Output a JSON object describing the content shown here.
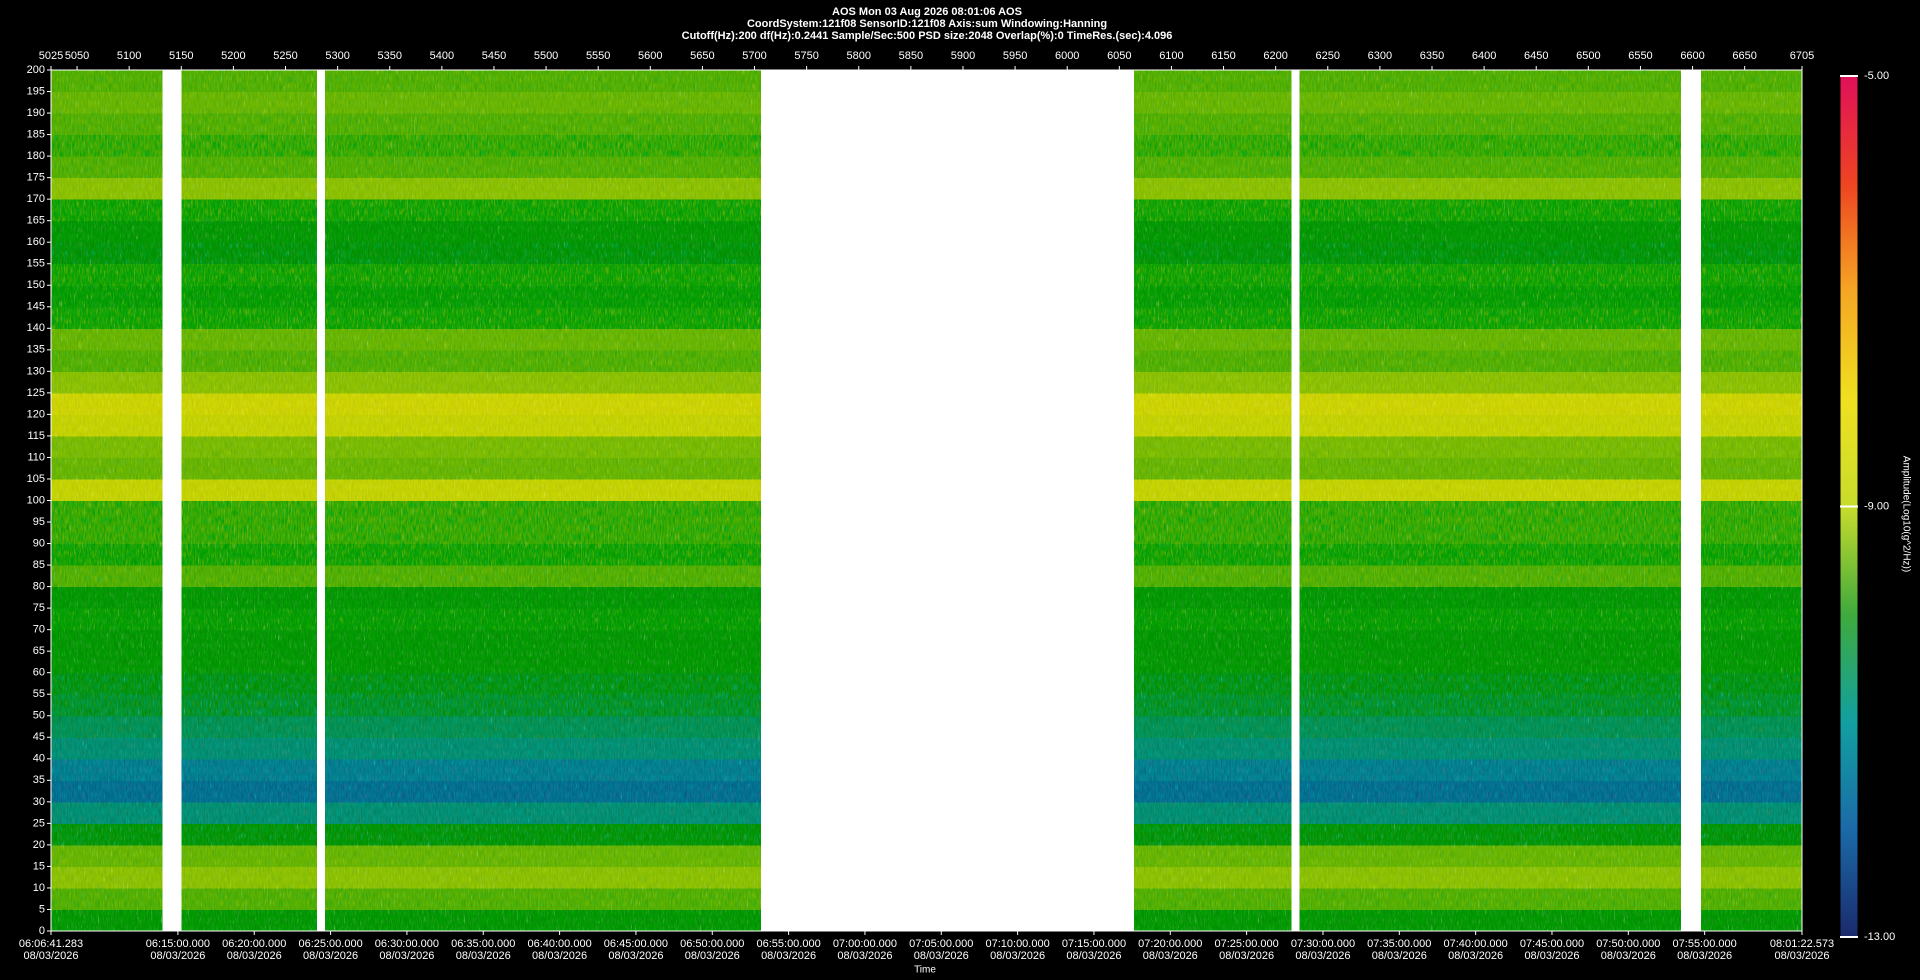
{
  "chart_data": {
    "type": "heatmap",
    "title": "AOS  Mon 03 Aug 2026 08:01:06  AOS",
    "subtitle": [
      "CoordSystem:121f08   SensorID:121f08   Axis:sum   Windowing:Hanning",
      "Cutoff(Hz):200     df(Hz):0.2441     Sample/Sec:500     PSD size:2048     Overlap(%):0     TimeRes.(sec):4.096"
    ],
    "x_label": "Time",
    "colorbar_label": "Amplitude(Log10(g^2/Hz))",
    "xlim": [
      5025,
      6705
    ],
    "xticks": [
      5025,
      5050,
      5100,
      5150,
      5200,
      5250,
      5300,
      5350,
      5400,
      5450,
      5500,
      5550,
      5600,
      5650,
      5700,
      5750,
      5800,
      5850,
      5900,
      5950,
      6000,
      6050,
      6100,
      6150,
      6200,
      6250,
      6300,
      6350,
      6400,
      6450,
      6500,
      6550,
      6600,
      6650,
      6705
    ],
    "x2ticks": [
      {
        "value": 5025,
        "label": "06:06:41.283\n08/03/2026"
      },
      {
        "value": 5146.76,
        "label": "06:15:00.000\n08/03/2026"
      },
      {
        "value": 5220.0,
        "label": "06:20:00.000\n08/03/2026"
      },
      {
        "value": 5293.24,
        "label": "06:25:00.000\n08/03/2026"
      },
      {
        "value": 5366.48,
        "label": "06:30:00.000\n08/03/2026"
      },
      {
        "value": 5439.73,
        "label": "06:35:00.000\n08/03/2026"
      },
      {
        "value": 5512.97,
        "label": "06:40:00.000\n08/03/2026"
      },
      {
        "value": 5586.21,
        "label": "06:45:00.000\n08/03/2026"
      },
      {
        "value": 5659.45,
        "label": "06:50:00.000\n08/03/2026"
      },
      {
        "value": 5732.7,
        "label": "06:55:00.000\n08/03/2026"
      },
      {
        "value": 5805.94,
        "label": "07:00:00.000\n08/03/2026"
      },
      {
        "value": 5879.18,
        "label": "07:05:00.000\n08/03/2026"
      },
      {
        "value": 5952.42,
        "label": "07:10:00.000\n08/03/2026"
      },
      {
        "value": 6025.66,
        "label": "07:15:00.000\n08/03/2026"
      },
      {
        "value": 6098.91,
        "label": "07:20:00.000\n08/03/2026"
      },
      {
        "value": 6172.15,
        "label": "07:25:00.000\n08/03/2026"
      },
      {
        "value": 6245.39,
        "label": "07:30:00.000\n08/03/2026"
      },
      {
        "value": 6318.63,
        "label": "07:35:00.000\n08/03/2026"
      },
      {
        "value": 6391.88,
        "label": "07:40:00.000\n08/03/2026"
      },
      {
        "value": 6465.12,
        "label": "07:45:00.000\n08/03/2026"
      },
      {
        "value": 6538.36,
        "label": "07:50:00.000\n08/03/2026"
      },
      {
        "value": 6611.6,
        "label": "07:55:00.000\n08/03/2026"
      },
      {
        "value": 6705,
        "label": "08:01:22.573\n08/03/2026"
      }
    ],
    "ylim": [
      0,
      200
    ],
    "yticks": [
      0,
      5,
      10,
      15,
      20,
      25,
      30,
      35,
      40,
      45,
      50,
      55,
      60,
      65,
      70,
      75,
      80,
      85,
      90,
      95,
      100,
      105,
      110,
      115,
      120,
      125,
      130,
      135,
      140,
      145,
      150,
      155,
      160,
      165,
      170,
      175,
      180,
      185,
      190,
      195,
      200
    ],
    "y_bins": [
      0,
      5,
      10,
      15,
      20,
      25,
      30,
      35,
      40,
      45,
      50,
      55,
      60,
      65,
      70,
      75,
      80,
      85,
      90,
      95,
      100,
      105,
      110,
      115,
      120,
      125,
      130,
      135,
      140,
      145,
      150,
      155,
      160,
      165,
      170,
      175,
      180,
      185,
      190,
      195,
      200
    ],
    "values": [
      -10.0,
      -9.6,
      -9.3,
      -9.5,
      -10.2,
      -10.8,
      -11.4,
      -11.2,
      -10.8,
      -10.6,
      -10.4,
      -10.3,
      -10.0,
      -10.0,
      -9.9,
      -10.0,
      -9.6,
      -9.8,
      -9.7,
      -9.7,
      -8.8,
      -9.5,
      -9.4,
      -8.8,
      -8.6,
      -9.3,
      -9.6,
      -9.5,
      -9.8,
      -9.9,
      -9.8,
      -10.2,
      -10.0,
      -9.8,
      -9.3,
      -9.6,
      -9.7,
      -9.6,
      -9.5,
      -9.6
    ],
    "segments": [
      [
        5025,
        5132
      ],
      [
        5150,
        5280
      ],
      [
        5288,
        5706
      ],
      [
        6064,
        6215
      ],
      [
        6223,
        6589
      ],
      [
        6608,
        6705
      ]
    ],
    "clim": [
      -13,
      -5
    ],
    "colormap": [
      "#1a2a6c",
      "#1b6aa8",
      "#12a0a0",
      "#3faa3c",
      "#c8dc2c",
      "#f0e020",
      "#f5a623",
      "#ee4422",
      "#e0105a"
    ],
    "cticks": [
      {
        "value": -5,
        "label": "-5.00"
      },
      {
        "value": -9,
        "label": "-9.00"
      },
      {
        "value": -13,
        "label": "-13.00"
      }
    ]
  }
}
